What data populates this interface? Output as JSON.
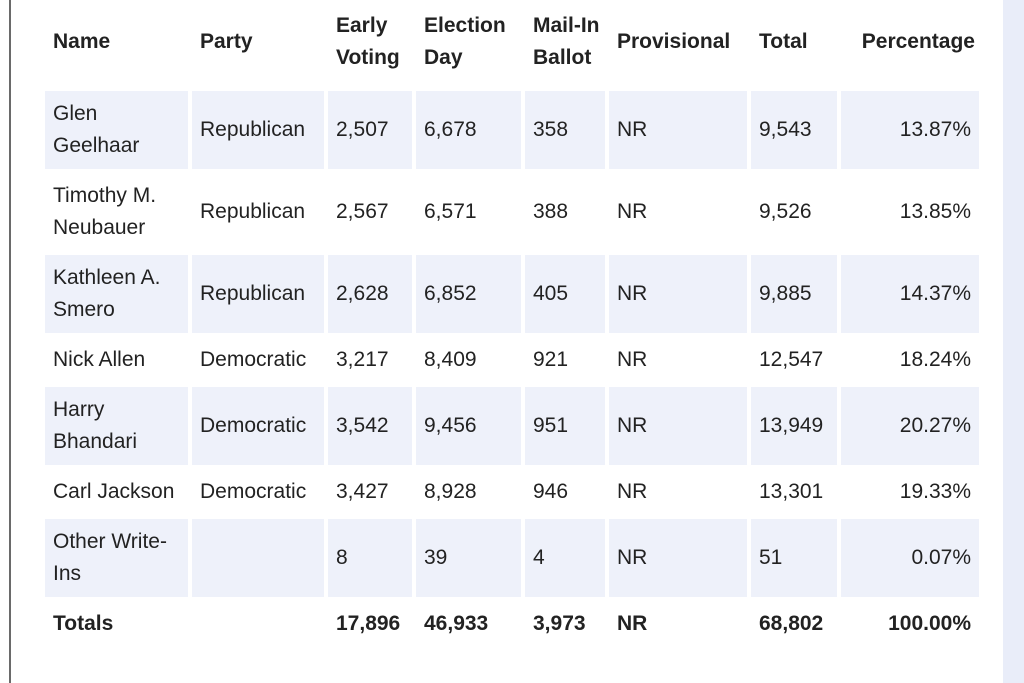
{
  "table": {
    "header": [
      "Name",
      "Party",
      "Early Voting",
      "Election Day",
      "Mail-In Ballot",
      "Provisional",
      "Total",
      "Percentage"
    ],
    "rows": [
      [
        "Glen Geelhaar",
        "Republican",
        "2,507",
        "6,678",
        "358",
        "NR",
        "9,543",
        "13.87%"
      ],
      [
        "Timothy M. Neubauer",
        "Republican",
        "2,567",
        "6,571",
        "388",
        "NR",
        "9,526",
        "13.85%"
      ],
      [
        "Kathleen A. Smero",
        "Republican",
        "2,628",
        "6,852",
        "405",
        "NR",
        "9,885",
        "14.37%"
      ],
      [
        "Nick Allen",
        "Democratic",
        "3,217",
        "8,409",
        "921",
        "NR",
        "12,547",
        "18.24%"
      ],
      [
        "Harry Bhandari",
        "Democratic",
        "3,542",
        "9,456",
        "951",
        "NR",
        "13,949",
        "20.27%"
      ],
      [
        "Carl Jackson",
        "Democratic",
        "3,427",
        "8,928",
        "946",
        "NR",
        "13,301",
        "19.33%"
      ],
      [
        "Other Write-Ins",
        null,
        "8",
        "39",
        "4",
        "NR",
        "51",
        "0.07%"
      ]
    ],
    "totals": [
      "Totals",
      null,
      "17,896",
      "46,933",
      "3,973",
      "NR",
      "68,802",
      "100.00%"
    ]
  }
}
